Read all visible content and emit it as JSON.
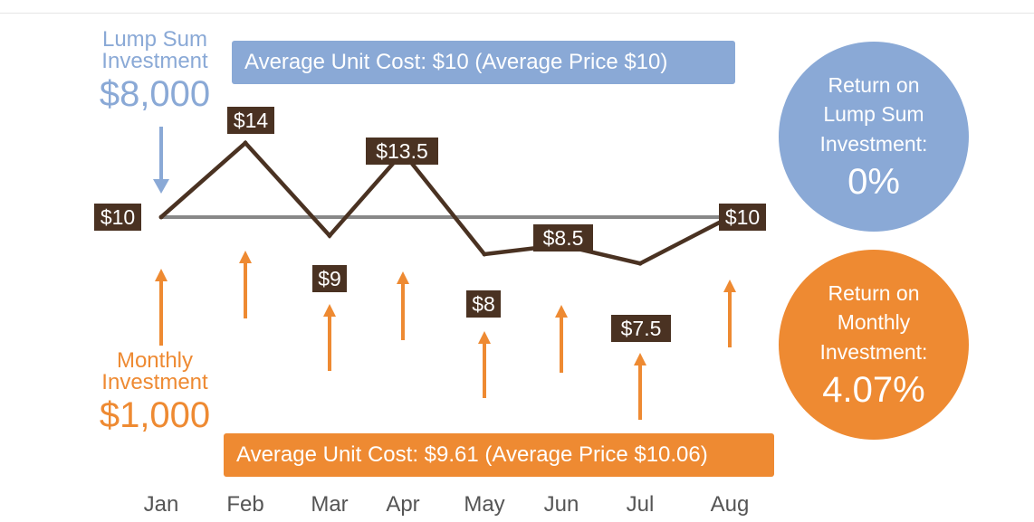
{
  "lump_sum": {
    "label_line1": "Lump Sum",
    "label_line2": "Investment",
    "amount": "$8,000",
    "banner": "Average Unit Cost: $10 (Average Price $10)",
    "return_title": "Return on\nLump Sum\nInvestment:",
    "return_value": "0%"
  },
  "monthly": {
    "label_line1": "Monthly",
    "label_line2": "Investment",
    "amount": "$1,000",
    "banner": "Average Unit Cost: $9.61 (Average Price $10.06)",
    "return_title": "Return on\nMonthly\nInvestment:",
    "return_value": "4.07%"
  },
  "colors": {
    "lump_blue": "#8aa9d6",
    "monthly_orange": "#ee8a32",
    "price_line": "#4a3222",
    "label_bg": "#4a3222",
    "average_line": "#888888",
    "axis_text": "#555555"
  },
  "chart_data": {
    "type": "line",
    "categories": [
      "Jan",
      "Feb",
      "Mar",
      "Apr",
      "May",
      "Jun",
      "Jul",
      "Aug"
    ],
    "values": [
      10,
      14,
      9,
      13.5,
      8,
      8.5,
      7.5,
      10
    ],
    "data_labels": [
      "$10",
      "$14",
      "$9",
      "$13.5",
      "$8",
      "$8.5",
      "$7.5",
      "$10"
    ],
    "reference_value": 10,
    "grid": false,
    "legend": "none"
  }
}
